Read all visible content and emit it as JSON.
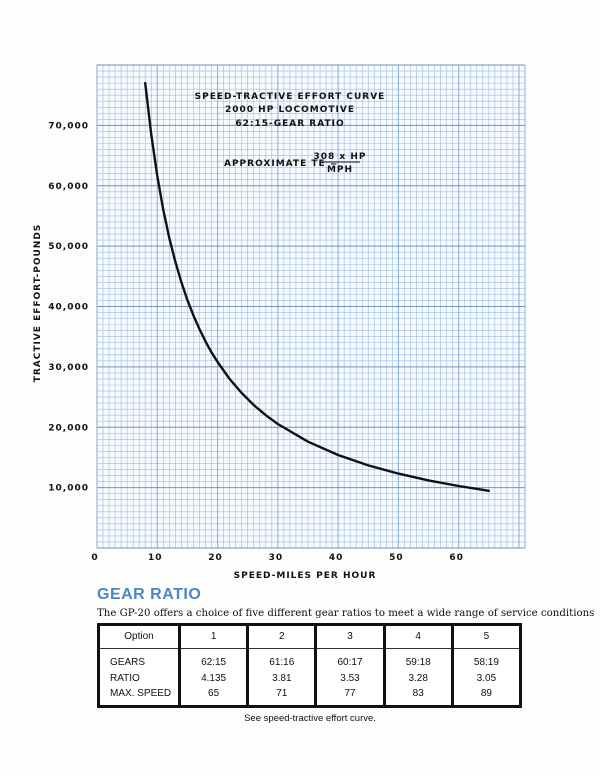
{
  "chart_data": {
    "type": "line",
    "title": [
      "SPEED-TRACTIVE EFFORT CURVE",
      "2000 HP LOCOMOTIVE",
      "62:15-GEAR RATIO"
    ],
    "formula": {
      "prefix": "APPROXIMATE  TE =",
      "numerator": "308 x HP",
      "denominator": "MPH"
    },
    "xlabel": "SPEED-MILES PER HOUR",
    "ylabel": "TRACTIVE EFFORT-POUNDS",
    "xlim": [
      0,
      71
    ],
    "ylim": [
      0,
      80000
    ],
    "grid": true,
    "x_ticks": [
      0,
      10,
      20,
      30,
      40,
      50,
      60
    ],
    "x_tick_labels": [
      "0",
      "10",
      "20",
      "30",
      "40",
      "50",
      "60"
    ],
    "y_ticks": [
      10000,
      20000,
      30000,
      40000,
      50000,
      60000,
      70000
    ],
    "y_tick_labels": [
      "10,000",
      "20,000",
      "30,000",
      "40,000",
      "50,000",
      "60,000",
      "70,000"
    ],
    "series": [
      {
        "name": "Tractive effort",
        "color": "#111111",
        "x": [
          8,
          9,
          10,
          11,
          12,
          13,
          14,
          15,
          16,
          17,
          18,
          19,
          20,
          22,
          24,
          26,
          28,
          30,
          35,
          40,
          45,
          50,
          55,
          60,
          65
        ],
        "y": [
          77000,
          68444,
          61600,
          56000,
          51333,
          47385,
          44000,
          41067,
          38500,
          36235,
          34222,
          32421,
          30800,
          28000,
          25667,
          23692,
          22000,
          20533,
          17600,
          15400,
          13689,
          12320,
          11200,
          10267,
          9477
        ]
      }
    ],
    "grid_color": "#8fb3dc"
  },
  "gear_ratio": {
    "title": "GEAR RATIO",
    "description": "The GP-20 offers a choice of five different gear ratios to meet a wide range of service conditions",
    "header_label": "Option",
    "row_labels": [
      "GEARS",
      "RATIO",
      "MAX. SPEED"
    ],
    "options": [
      {
        "option": "1",
        "gears": "62:15",
        "ratio": "4.135",
        "max_speed": "65"
      },
      {
        "option": "2",
        "gears": "61:16",
        "ratio": "3.81",
        "max_speed": "71"
      },
      {
        "option": "3",
        "gears": "60:17",
        "ratio": "3.53",
        "max_speed": "77"
      },
      {
        "option": "4",
        "gears": "59:18",
        "ratio": "3.28",
        "max_speed": "83"
      },
      {
        "option": "5",
        "gears": "58:19",
        "ratio": "3.05",
        "max_speed": "89"
      }
    ],
    "caption": "See speed-tractive effort curve."
  }
}
